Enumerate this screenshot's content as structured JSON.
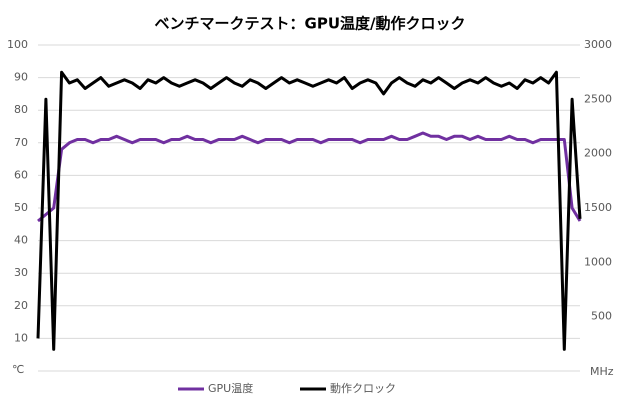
{
  "chart_data": {
    "type": "line",
    "title": "ベンチマークテスト：GPU温度/動作クロック",
    "y_unit": "℃",
    "y2_unit": "MHz",
    "ylim": [
      0,
      100
    ],
    "yticks": [
      10,
      20,
      30,
      40,
      50,
      60,
      70,
      80,
      90,
      100
    ],
    "y2lim": [
      0,
      3000
    ],
    "y2ticks": [
      500,
      1000,
      1500,
      2000,
      2500,
      3000
    ],
    "grid": true,
    "legend": "bottom",
    "series": [
      {
        "name": "GPU温度",
        "color": "#7030a0",
        "values": [
          46,
          48,
          50,
          68,
          70,
          71,
          71,
          70,
          71,
          71,
          72,
          71,
          70,
          71,
          71,
          71,
          70,
          71,
          71,
          72,
          71,
          71,
          70,
          71,
          71,
          71,
          72,
          71,
          70,
          71,
          71,
          71,
          70,
          71,
          71,
          71,
          70,
          71,
          71,
          71,
          71,
          70,
          71,
          71,
          71,
          72,
          71,
          71,
          72,
          73,
          72,
          72,
          71,
          72,
          72,
          71,
          72,
          71,
          71,
          71,
          72,
          71,
          71,
          70,
          71,
          71,
          71,
          71,
          50,
          46
        ]
      },
      {
        "name": "動作クロック",
        "color": "#000000",
        "axis": "y2",
        "values": [
          300,
          2500,
          200,
          2750,
          2650,
          2680,
          2600,
          2650,
          2700,
          2620,
          2650,
          2680,
          2650,
          2600,
          2680,
          2650,
          2700,
          2650,
          2620,
          2650,
          2680,
          2650,
          2600,
          2650,
          2700,
          2650,
          2620,
          2680,
          2650,
          2600,
          2650,
          2700,
          2650,
          2680,
          2650,
          2620,
          2650,
          2680,
          2650,
          2700,
          2600,
          2650,
          2680,
          2650,
          2550,
          2650,
          2700,
          2650,
          2620,
          2680,
          2650,
          2700,
          2650,
          2600,
          2650,
          2680,
          2650,
          2700,
          2650,
          2620,
          2650,
          2600,
          2680,
          2650,
          2700,
          2650,
          2750,
          200,
          2500,
          1400
        ]
      }
    ]
  }
}
